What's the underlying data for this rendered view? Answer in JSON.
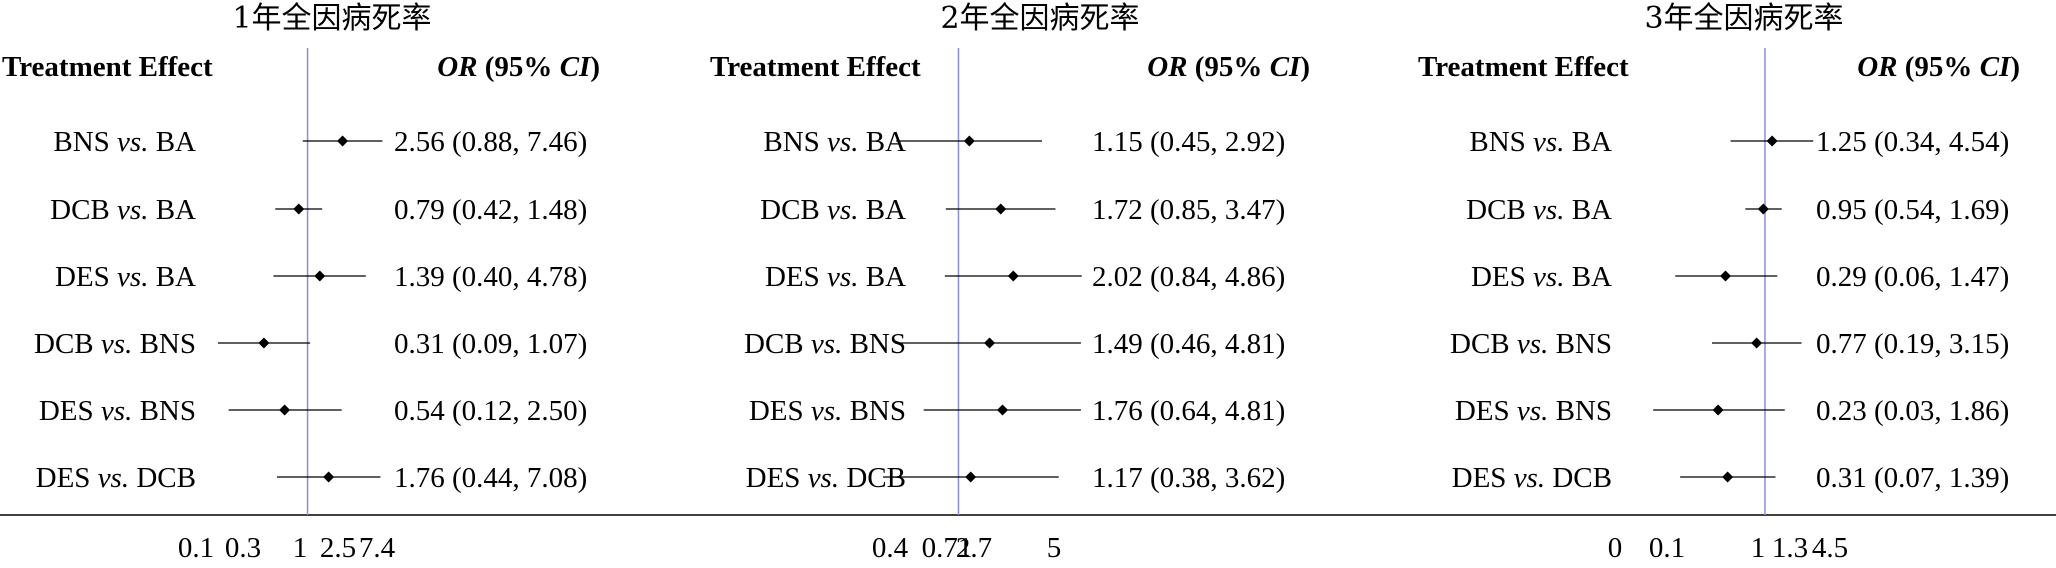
{
  "colors": {
    "reference_line": "#8c8cd9",
    "ink": "#000000",
    "background": "#ffffff"
  },
  "chart_data": [
    {
      "type": "forest",
      "title": "1年全因病死率",
      "header_left": "Treatment Effect",
      "header_right": {
        "or": "OR",
        "mid": " (95% ",
        "ci": "CI",
        "end": ")"
      },
      "reference_value": 1,
      "xlim": [
        0.05,
        8
      ],
      "xticks": [
        "0.1",
        "0.3",
        "1",
        "2.5",
        "7.4"
      ],
      "rows": [
        {
          "label": {
            "a": "BNS ",
            "vs": "vs.",
            "b": " BA"
          },
          "est": 2.56,
          "lo": 0.88,
          "hi": 7.46,
          "text": "2.56 (0.88, 7.46)"
        },
        {
          "label": {
            "a": "DCB ",
            "vs": "vs.",
            "b": " BA"
          },
          "est": 0.79,
          "lo": 0.42,
          "hi": 1.48,
          "text": "0.79 (0.42, 1.48)"
        },
        {
          "label": {
            "a": "DES ",
            "vs": "vs.",
            "b": " BA"
          },
          "est": 1.39,
          "lo": 0.4,
          "hi": 4.78,
          "text": "1.39 (0.40, 4.78)"
        },
        {
          "label": {
            "a": "DCB ",
            "vs": "vs.",
            "b": " BNS"
          },
          "est": 0.31,
          "lo": 0.09,
          "hi": 1.07,
          "text": "0.31 (0.09, 1.07)"
        },
        {
          "label": {
            "a": "DES ",
            "vs": "vs.",
            "b": " BNS"
          },
          "est": 0.54,
          "lo": 0.12,
          "hi": 2.5,
          "text": "0.54 (0.12, 2.50)"
        },
        {
          "label": {
            "a": "DES ",
            "vs": "vs.",
            "b": " DCB"
          },
          "est": 1.76,
          "lo": 0.44,
          "hi": 7.08,
          "text": "1.76 (0.44, 7.08)"
        }
      ]
    },
    {
      "type": "forest",
      "title": "2年全因病死率",
      "header_left": "Treatment Effect",
      "header_right": {
        "or": "OR",
        "mid": " (95% ",
        "ci": "CI",
        "end": ")"
      },
      "reference_value": 1,
      "xlim": [
        0.4,
        5.2
      ],
      "xticks": [
        "0.4",
        "0.71",
        "2.7",
        "5"
      ],
      "rows": [
        {
          "label": {
            "a": "BNS ",
            "vs": "vs.",
            "b": " BA"
          },
          "est": 1.15,
          "lo": 0.45,
          "hi": 2.92,
          "text": "1.15 (0.45, 2.92)"
        },
        {
          "label": {
            "a": "DCB ",
            "vs": "vs.",
            "b": " BA"
          },
          "est": 1.72,
          "lo": 0.85,
          "hi": 3.47,
          "text": "1.72 (0.85, 3.47)"
        },
        {
          "label": {
            "a": "DES ",
            "vs": "vs.",
            "b": " BA"
          },
          "est": 2.02,
          "lo": 0.84,
          "hi": 4.86,
          "text": "2.02 (0.84, 4.86)"
        },
        {
          "label": {
            "a": "DCB ",
            "vs": "vs.",
            "b": " BNS"
          },
          "est": 1.49,
          "lo": 0.46,
          "hi": 4.81,
          "text": "1.49 (0.46, 4.81)"
        },
        {
          "label": {
            "a": "DES ",
            "vs": "vs.",
            "b": " BNS"
          },
          "est": 1.76,
          "lo": 0.64,
          "hi": 4.81,
          "text": "1.76 (0.64, 4.81)"
        },
        {
          "label": {
            "a": "DES ",
            "vs": "vs.",
            "b": " DCB"
          },
          "est": 1.17,
          "lo": 0.38,
          "hi": 3.62,
          "text": "1.17 (0.38, 3.62)"
        }
      ]
    },
    {
      "type": "forest",
      "title": "3年全因病死率",
      "header_left": "Treatment Effect",
      "header_right": {
        "or": "OR",
        "mid": " (95% ",
        "ci": "CI",
        "end": ")"
      },
      "reference_value": 1,
      "xlim": [
        0.008,
        4.8
      ],
      "xticks": [
        "0",
        "0.1",
        "1",
        "1.3",
        "4.5"
      ],
      "rows": [
        {
          "label": {
            "a": "BNS ",
            "vs": "vs.",
            "b": " BA"
          },
          "est": 1.25,
          "lo": 0.34,
          "hi": 4.54,
          "text": "1.25 (0.34, 4.54)"
        },
        {
          "label": {
            "a": "DCB ",
            "vs": "vs.",
            "b": " BA"
          },
          "est": 0.95,
          "lo": 0.54,
          "hi": 1.69,
          "text": "0.95 (0.54, 1.69)"
        },
        {
          "label": {
            "a": "DES ",
            "vs": "vs.",
            "b": " BA"
          },
          "est": 0.29,
          "lo": 0.06,
          "hi": 1.47,
          "text": "0.29 (0.06, 1.47)"
        },
        {
          "label": {
            "a": "DCB ",
            "vs": "vs.",
            "b": " BNS"
          },
          "est": 0.77,
          "lo": 0.19,
          "hi": 3.15,
          "text": "0.77 (0.19, 3.15)"
        },
        {
          "label": {
            "a": "DES ",
            "vs": "vs.",
            "b": " BNS"
          },
          "est": 0.23,
          "lo": 0.03,
          "hi": 1.86,
          "text": "0.23 (0.03, 1.86)"
        },
        {
          "label": {
            "a": "DES ",
            "vs": "vs.",
            "b": " DCB"
          },
          "est": 0.31,
          "lo": 0.07,
          "hi": 1.39,
          "text": "0.31 (0.07, 1.39)"
        }
      ]
    }
  ]
}
